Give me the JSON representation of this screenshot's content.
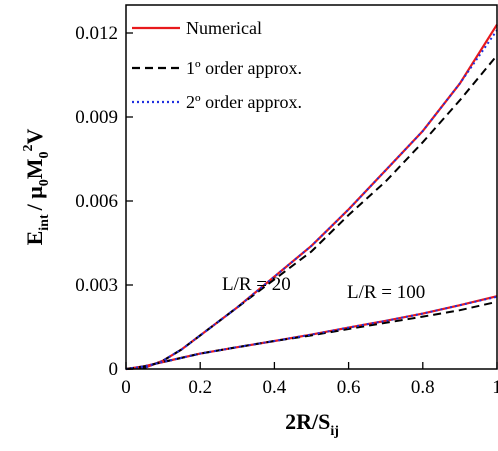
{
  "chart_data": {
    "type": "line",
    "x_range": [
      0,
      1
    ],
    "y_range": [
      0,
      0.013
    ],
    "x_ticks": [
      "0",
      "0.2",
      "0.4",
      "0.6",
      "0.8",
      "1"
    ],
    "x_tick_values": [
      0,
      0.2,
      0.4,
      0.6,
      0.8,
      1.0
    ],
    "y_ticks": [
      "0",
      "0.003",
      "0.006",
      "0.009",
      "0.012"
    ],
    "y_tick_values": [
      0,
      0.003,
      0.006,
      0.009,
      0.012
    ],
    "xlabel": {
      "main": "2R/S",
      "sub": "ij"
    },
    "ylabel": {
      "e": "E",
      "int": "int",
      "mid": "/ μ",
      "zero": "0",
      "m": "M",
      "zero2": "0",
      "two": "2",
      "v": "V"
    },
    "legend": {
      "position": "top-left",
      "entries": [
        {
          "label": "Numerical",
          "color": "#e8191c",
          "style": "solid"
        },
        {
          "label": "1º order approx.",
          "color": "#000000",
          "style": "dashed"
        },
        {
          "label": "2º order approx.",
          "color": "#1f2fe0",
          "style": "dotted"
        }
      ]
    },
    "annotations": [
      {
        "text": "L/R = 20",
        "x": 0.38,
        "y": 0.0058
      },
      {
        "text": "L/R = 100",
        "x": 0.76,
        "y": 0.0031
      }
    ],
    "groups": [
      {
        "label": "L/R = 20",
        "series": [
          {
            "name": "Numerical",
            "color": "#e8191c",
            "style": "solid",
            "x": [
              0,
              0.05,
              0.1,
              0.15,
              0.2,
              0.25,
              0.3,
              0.4,
              0.5,
              0.6,
              0.7,
              0.8,
              0.9,
              1.0
            ],
            "y": [
              0,
              4e-05,
              0.0003,
              0.0007,
              0.0012,
              0.0017,
              0.0022,
              0.0033,
              0.0044,
              0.0057,
              0.0071,
              0.0085,
              0.0102,
              0.0123
            ]
          },
          {
            "name": "1º order approx.",
            "color": "#000000",
            "style": "dashed",
            "x": [
              0,
              0.05,
              0.1,
              0.15,
              0.2,
              0.25,
              0.3,
              0.4,
              0.5,
              0.6,
              0.7,
              0.8,
              0.9,
              1.0
            ],
            "y": [
              0,
              4e-05,
              0.0003,
              0.0007,
              0.0012,
              0.0017,
              0.0022,
              0.0032,
              0.0042,
              0.0055,
              0.0067,
              0.0081,
              0.0096,
              0.0112
            ]
          },
          {
            "name": "2º order approx.",
            "color": "#1f2fe0",
            "style": "dotted",
            "x": [
              0,
              0.05,
              0.1,
              0.15,
              0.2,
              0.25,
              0.3,
              0.4,
              0.5,
              0.6,
              0.7,
              0.8,
              0.9,
              1.0
            ],
            "y": [
              0,
              4e-05,
              0.0003,
              0.0007,
              0.0012,
              0.0017,
              0.0022,
              0.0033,
              0.0044,
              0.0057,
              0.0071,
              0.0085,
              0.0102,
              0.0121
            ]
          }
        ]
      },
      {
        "label": "L/R = 100",
        "series": [
          {
            "name": "Numerical",
            "color": "#e8191c",
            "style": "solid",
            "x": [
              0,
              0.05,
              0.1,
              0.2,
              0.3,
              0.4,
              0.5,
              0.6,
              0.7,
              0.8,
              0.9,
              1.0
            ],
            "y": [
              0,
              0.0001,
              0.00025,
              0.00055,
              0.00078,
              0.001,
              0.00123,
              0.00148,
              0.00172,
              0.00198,
              0.00228,
              0.0026
            ]
          },
          {
            "name": "1º order approx.",
            "color": "#000000",
            "style": "dashed",
            "x": [
              0,
              0.05,
              0.1,
              0.2,
              0.3,
              0.4,
              0.5,
              0.6,
              0.7,
              0.8,
              0.9,
              1.0
            ],
            "y": [
              0,
              0.0001,
              0.00025,
              0.00055,
              0.00078,
              0.001,
              0.0012,
              0.00143,
              0.00165,
              0.00187,
              0.0021,
              0.0024
            ]
          },
          {
            "name": "2º order approx.",
            "color": "#1f2fe0",
            "style": "dotted",
            "x": [
              0,
              0.05,
              0.1,
              0.2,
              0.3,
              0.4,
              0.5,
              0.6,
              0.7,
              0.8,
              0.9,
              1.0
            ],
            "y": [
              0,
              0.0001,
              0.00025,
              0.00055,
              0.00078,
              0.001,
              0.00123,
              0.00148,
              0.00172,
              0.00198,
              0.00228,
              0.00258
            ]
          }
        ]
      }
    ]
  }
}
